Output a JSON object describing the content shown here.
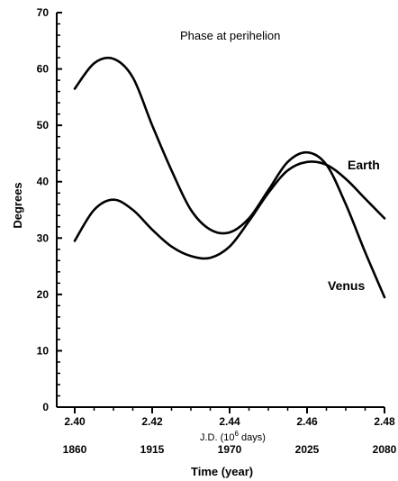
{
  "chart_data": {
    "type": "line",
    "title": "Phase at perihelion",
    "ylabel": "Degrees",
    "xlabel": "J.D. (10",
    "xlabel_sup": "6",
    "xlabel_suffix": " days)",
    "x2label": "Time (year)",
    "xlim": [
      2.4,
      2.48
    ],
    "ylim": [
      0,
      70
    ],
    "x_ticks": [
      "2.40",
      "2.42",
      "2.44",
      "2.46",
      "2.48"
    ],
    "x_tick_values": [
      2.4,
      2.42,
      2.44,
      2.46,
      2.48
    ],
    "year_ticks": [
      "1860",
      "1915",
      "1970",
      "2025",
      "2080"
    ],
    "y_ticks": [
      "0",
      "10",
      "20",
      "30",
      "40",
      "50",
      "60",
      "70"
    ],
    "y_tick_values": [
      0,
      10,
      20,
      30,
      40,
      50,
      60,
      70
    ],
    "grid": false,
    "series": [
      {
        "name": "Earth",
        "x": [
          2.4,
          2.405,
          2.41,
          2.415,
          2.42,
          2.425,
          2.43,
          2.435,
          2.44,
          2.445,
          2.45,
          2.455,
          2.46,
          2.465,
          2.47,
          2.475,
          2.48
        ],
        "y": [
          29.5,
          35.0,
          36.8,
          35.0,
          31.5,
          28.5,
          26.8,
          26.5,
          28.5,
          33.0,
          38.0,
          42.0,
          43.5,
          43.0,
          40.5,
          37.0,
          33.5
        ]
      },
      {
        "name": "Venus",
        "x": [
          2.4,
          2.405,
          2.41,
          2.415,
          2.42,
          2.425,
          2.43,
          2.435,
          2.44,
          2.445,
          2.45,
          2.455,
          2.46,
          2.465,
          2.47,
          2.475,
          2.48
        ],
        "y": [
          56.5,
          61.0,
          61.8,
          58.5,
          50.0,
          42.0,
          35.0,
          31.5,
          31.0,
          33.5,
          38.5,
          43.5,
          45.2,
          43.0,
          36.0,
          27.5,
          19.5
        ]
      }
    ]
  }
}
